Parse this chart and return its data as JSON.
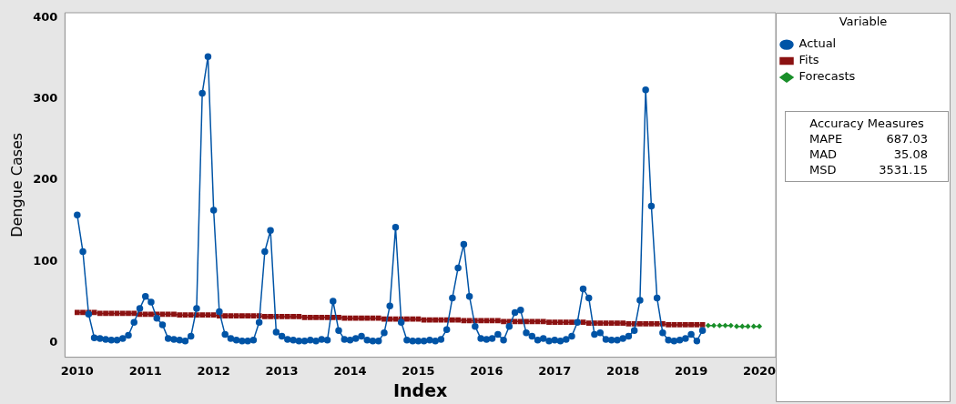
{
  "chart_data": {
    "type": "line",
    "xlabel": "Index",
    "ylabel": "Dengue Cases",
    "legend_title": "Variable",
    "x": [
      2010,
      2010.083,
      2010.167,
      2010.25,
      2010.333,
      2010.417,
      2010.5,
      2010.583,
      2010.667,
      2010.75,
      2010.833,
      2010.917,
      2011,
      2011.083,
      2011.167,
      2011.25,
      2011.333,
      2011.417,
      2011.5,
      2011.583,
      2011.667,
      2011.75,
      2011.833,
      2011.917,
      2012,
      2012.083,
      2012.167,
      2012.25,
      2012.333,
      2012.417,
      2012.5,
      2012.583,
      2012.667,
      2012.75,
      2012.833,
      2012.917,
      2013,
      2013.083,
      2013.167,
      2013.25,
      2013.333,
      2013.417,
      2013.5,
      2013.583,
      2013.667,
      2013.75,
      2013.833,
      2013.917,
      2014,
      2014.083,
      2014.167,
      2014.25,
      2014.333,
      2014.417,
      2014.5,
      2014.583,
      2014.667,
      2014.75,
      2014.833,
      2014.917,
      2015,
      2015.083,
      2015.167,
      2015.25,
      2015.333,
      2015.417,
      2015.5,
      2015.583,
      2015.667,
      2015.75,
      2015.833,
      2015.917,
      2016,
      2016.083,
      2016.167,
      2016.25,
      2016.333,
      2016.417,
      2016.5,
      2016.583,
      2016.667,
      2016.75,
      2016.833,
      2016.917,
      2017,
      2017.083,
      2017.167,
      2017.25,
      2017.333,
      2017.417,
      2017.5,
      2017.583,
      2017.667,
      2017.75,
      2017.833,
      2017.917,
      2018,
      2018.083,
      2018.167,
      2018.25,
      2018.333,
      2018.417,
      2018.5,
      2018.583,
      2018.667,
      2018.75,
      2018.833,
      2018.917,
      2019,
      2019.083,
      2019.167
    ],
    "series": [
      {
        "name": "Actual",
        "color": "#0054a6",
        "marker": "circle",
        "line_style": "solid",
        "values": [
          157,
          112,
          35,
          6,
          5,
          4,
          3,
          3,
          5,
          9,
          25,
          42,
          57,
          50,
          30,
          22,
          5,
          4,
          3,
          2,
          8,
          42,
          307,
          352,
          163,
          38,
          10,
          5,
          3,
          2,
          2,
          3,
          25,
          112,
          138,
          13,
          8,
          4,
          3,
          2,
          2,
          3,
          2,
          4,
          3,
          51,
          15,
          4,
          3,
          5,
          8,
          3,
          2,
          2,
          12,
          45,
          142,
          25,
          3,
          2,
          2,
          2,
          3,
          2,
          4,
          16,
          55,
          92,
          121,
          57,
          20,
          5,
          4,
          5,
          10,
          3,
          20,
          37,
          40,
          12,
          8,
          3,
          5,
          2,
          3,
          2,
          4,
          8,
          25,
          66,
          55,
          10,
          12,
          4,
          3,
          3,
          5,
          8,
          15,
          52,
          311,
          168,
          55,
          12,
          3,
          2,
          3,
          5,
          10,
          2,
          15
        ]
      },
      {
        "name": "Fits",
        "color": "#8b1212",
        "marker": "square",
        "line_style": "solid",
        "values": [
          37,
          37,
          37,
          37,
          36,
          36,
          36,
          36,
          36,
          36,
          36,
          35,
          35,
          35,
          35,
          35,
          35,
          35,
          34,
          34,
          34,
          34,
          34,
          34,
          34,
          33,
          33,
          33,
          33,
          33,
          33,
          33,
          33,
          32,
          32,
          32,
          32,
          32,
          32,
          32,
          31,
          31,
          31,
          31,
          31,
          31,
          31,
          30,
          30,
          30,
          30,
          30,
          30,
          30,
          29,
          29,
          29,
          29,
          29,
          29,
          29,
          28,
          28,
          28,
          28,
          28,
          28,
          28,
          27,
          27,
          27,
          27,
          27,
          27,
          27,
          26,
          26,
          26,
          26,
          26,
          26,
          26,
          26,
          25,
          25,
          25,
          25,
          25,
          25,
          25,
          24,
          24,
          24,
          24,
          24,
          24,
          24,
          23,
          23,
          23,
          23,
          23,
          23,
          23,
          22,
          22,
          22,
          22,
          22,
          22,
          22
        ]
      },
      {
        "name": "Forecasts",
        "color": "#1a8f2a",
        "marker": "diamond",
        "line_style": "dashed",
        "x": [
          2019.25,
          2019.333,
          2019.417,
          2019.5,
          2019.583,
          2019.667,
          2019.75,
          2019.833,
          2019.917,
          2020
        ],
        "values": [
          21,
          21,
          21,
          21,
          21,
          20,
          20,
          20,
          20,
          20
        ]
      }
    ],
    "xlim": [
      2009.82,
      2020.24
    ],
    "xticks": [
      2010,
      2011,
      2012,
      2013,
      2014,
      2015,
      2016,
      2017,
      2018,
      2019,
      2020
    ],
    "ylim": [
      -18,
      406
    ],
    "yticks": [
      0,
      100,
      200,
      300,
      400
    ],
    "grid": false,
    "legend": "top right",
    "annotations": [
      "Accuracy Measures",
      "MAPE 687.03",
      "MAD 35.08",
      "MSD 3531.15"
    ]
  }
}
